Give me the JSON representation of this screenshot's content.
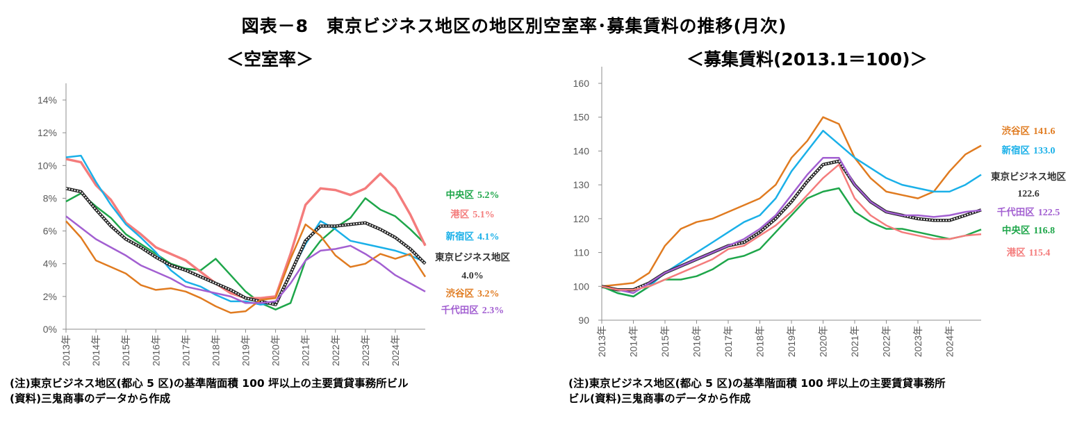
{
  "title": "図表－8　東京ビジネス地区の地区別空室率･募集賃料の推移(月次)",
  "chart1_subtitle": "＜空室率＞",
  "chart2_subtitle": "＜募集賃料(2013.1＝100)＞",
  "note1_line1": "(注)東京ビジネス地区(都心 5 区)の基準階面積 100 坪以上の主要賃貸事務所ビル",
  "note1_line2": "(資料)三鬼商事のデータから作成",
  "note2_line1": "(注)東京ビジネス地区(都心 5 区)の基準階面積 100 坪以上の主要賃貸事務所",
  "note2_line2": "ビル(資料)三鬼商事のデータから作成",
  "chart_data": [
    {
      "type": "line",
      "title": "＜空室率＞",
      "x": [
        2013.0,
        2013.5,
        2014.0,
        2014.5,
        2015.0,
        2015.5,
        2016.0,
        2016.5,
        2017.0,
        2017.5,
        2018.0,
        2018.5,
        2019.0,
        2019.5,
        2020.0,
        2020.5,
        2021.0,
        2021.5,
        2022.0,
        2022.5,
        2023.0,
        2023.5,
        2024.0,
        2024.5,
        2025.0
      ],
      "xlabels": [
        "2013年",
        "2014年",
        "2015年",
        "2016年",
        "2017年",
        "2018年",
        "2019年",
        "2020年",
        "2021年",
        "2022年",
        "2023年",
        "2024年"
      ],
      "ylim": [
        0,
        14
      ],
      "yticks": [
        0,
        2,
        4,
        6,
        8,
        10,
        12,
        14
      ],
      "ytick_labels": [
        "0%",
        "2%",
        "4%",
        "6%",
        "8%",
        "10%",
        "12%",
        "14%"
      ],
      "series": [
        {
          "name": "中央区",
          "label_value": "5.2%",
          "color": "#1ea64a",
          "style": "solid",
          "values": [
            7.8,
            8.3,
            7.5,
            6.8,
            5.8,
            5.2,
            4.6,
            4.0,
            3.7,
            3.6,
            4.3,
            3.3,
            2.3,
            1.6,
            1.2,
            1.6,
            4.2,
            5.4,
            6.2,
            6.8,
            8.0,
            7.3,
            6.9,
            6.1,
            5.2
          ]
        },
        {
          "name": "港区",
          "label_value": "5.1%",
          "color": "#f47c7c",
          "style": "solid",
          "values": [
            10.4,
            10.2,
            8.8,
            7.9,
            6.5,
            5.8,
            5.0,
            4.6,
            4.2,
            3.5,
            2.8,
            2.2,
            1.9,
            1.9,
            2.0,
            4.6,
            7.6,
            8.6,
            8.5,
            8.2,
            8.6,
            9.5,
            8.6,
            7.0,
            5.1
          ]
        },
        {
          "name": "新宿区",
          "label_value": "4.1%",
          "color": "#1ab0e8",
          "style": "solid",
          "values": [
            10.5,
            10.6,
            9.0,
            7.6,
            6.4,
            5.6,
            4.7,
            3.6,
            2.9,
            2.6,
            2.1,
            1.7,
            1.7,
            1.5,
            1.6,
            3.4,
            5.2,
            6.6,
            6.1,
            5.4,
            5.2,
            5.0,
            4.8,
            4.5,
            4.1
          ]
        },
        {
          "name": "東京ビジネス地区",
          "label_value": "4.0%",
          "color": "#222222",
          "style": "dotted",
          "values": [
            8.6,
            8.4,
            7.3,
            6.3,
            5.5,
            5.0,
            4.4,
            3.9,
            3.6,
            3.2,
            2.8,
            2.4,
            1.9,
            1.7,
            1.5,
            3.4,
            5.4,
            6.3,
            6.3,
            6.4,
            6.5,
            6.1,
            5.6,
            4.9,
            4.0
          ]
        },
        {
          "name": "渋谷区",
          "label_value": "3.2%",
          "color": "#e07b20",
          "style": "solid",
          "values": [
            6.6,
            5.6,
            4.2,
            3.8,
            3.4,
            2.7,
            2.4,
            2.5,
            2.3,
            1.9,
            1.4,
            1.0,
            1.1,
            1.8,
            1.9,
            4.3,
            6.4,
            5.7,
            4.5,
            3.8,
            4.0,
            4.6,
            4.3,
            4.6,
            3.2
          ]
        },
        {
          "name": "千代田区",
          "label_value": "2.3%",
          "color": "#a25fd1",
          "style": "solid",
          "values": [
            6.9,
            6.2,
            5.5,
            5.0,
            4.5,
            3.9,
            3.5,
            3.1,
            2.6,
            2.4,
            2.2,
            2.0,
            1.6,
            1.6,
            1.7,
            2.8,
            4.2,
            4.8,
            4.9,
            5.1,
            4.6,
            4.0,
            3.3,
            2.8,
            2.3
          ]
        }
      ]
    },
    {
      "type": "line",
      "title": "＜募集賃料(2013.1＝100)＞",
      "x": [
        2013.0,
        2013.5,
        2014.0,
        2014.5,
        2015.0,
        2015.5,
        2016.0,
        2016.5,
        2017.0,
        2017.5,
        2018.0,
        2018.5,
        2019.0,
        2019.5,
        2020.0,
        2020.5,
        2021.0,
        2021.5,
        2022.0,
        2022.5,
        2023.0,
        2023.5,
        2024.0,
        2024.5,
        2025.0
      ],
      "xlabels": [
        "2013年",
        "2014年",
        "2015年",
        "2016年",
        "2017年",
        "2018年",
        "2019年",
        "2020年",
        "2021年",
        "2022年",
        "2023年",
        "2024年"
      ],
      "ylim": [
        90,
        160
      ],
      "yticks": [
        90,
        100,
        110,
        120,
        130,
        140,
        150,
        160
      ],
      "ytick_labels": [
        "90",
        "100",
        "110",
        "120",
        "130",
        "140",
        "150",
        "160"
      ],
      "series": [
        {
          "name": "渋谷区",
          "label_value": "141.6",
          "color": "#e07b20",
          "style": "solid",
          "values": [
            100,
            100.5,
            101,
            104,
            112,
            117,
            119,
            120,
            122,
            124,
            126,
            130,
            138,
            143,
            150,
            148,
            138,
            132,
            128,
            127,
            126,
            128,
            134,
            139,
            141.6
          ]
        },
        {
          "name": "新宿区",
          "label_value": "133.0",
          "color": "#1ab0e8",
          "style": "solid",
          "values": [
            100,
            98,
            97,
            100,
            104,
            107,
            110,
            113,
            116,
            119,
            121,
            126,
            134,
            140,
            146,
            142,
            138,
            135,
            132,
            130,
            129,
            128,
            128,
            130,
            133.0
          ]
        },
        {
          "name": "東京ビジネス地区",
          "label_value": "122.6",
          "color": "#222222",
          "style": "dotted",
          "values": [
            100,
            99,
            99,
            101,
            104,
            106,
            108,
            110,
            112,
            113,
            116,
            120,
            125,
            131,
            136,
            137,
            130,
            125,
            122,
            121,
            120,
            119.5,
            119.5,
            121,
            122.6
          ]
        },
        {
          "name": "千代田区",
          "label_value": "122.5",
          "color": "#a25fd1",
          "style": "solid",
          "values": [
            100,
            99,
            98,
            101,
            104,
            106,
            108,
            110,
            112,
            114,
            117,
            121,
            127,
            133,
            138,
            138,
            130,
            125,
            122,
            121,
            121,
            120.5,
            121,
            122,
            122.5
          ]
        },
        {
          "name": "中央区",
          "label_value": "116.8",
          "color": "#1ea64a",
          "style": "solid",
          "values": [
            100,
            98,
            97,
            100,
            102,
            102,
            103,
            105,
            108,
            109,
            111,
            116,
            121,
            126,
            128,
            129,
            122,
            119,
            117,
            117,
            116,
            115,
            114,
            115,
            116.8
          ]
        },
        {
          "name": "港区",
          "label_value": "115.4",
          "color": "#f47c7c",
          "style": "solid",
          "values": [
            100,
            99,
            99,
            100,
            102,
            104,
            106,
            108,
            111,
            112,
            115,
            118,
            122,
            127,
            132,
            136,
            126,
            121,
            118,
            116,
            115,
            114,
            114,
            115,
            115.4
          ]
        }
      ]
    }
  ]
}
